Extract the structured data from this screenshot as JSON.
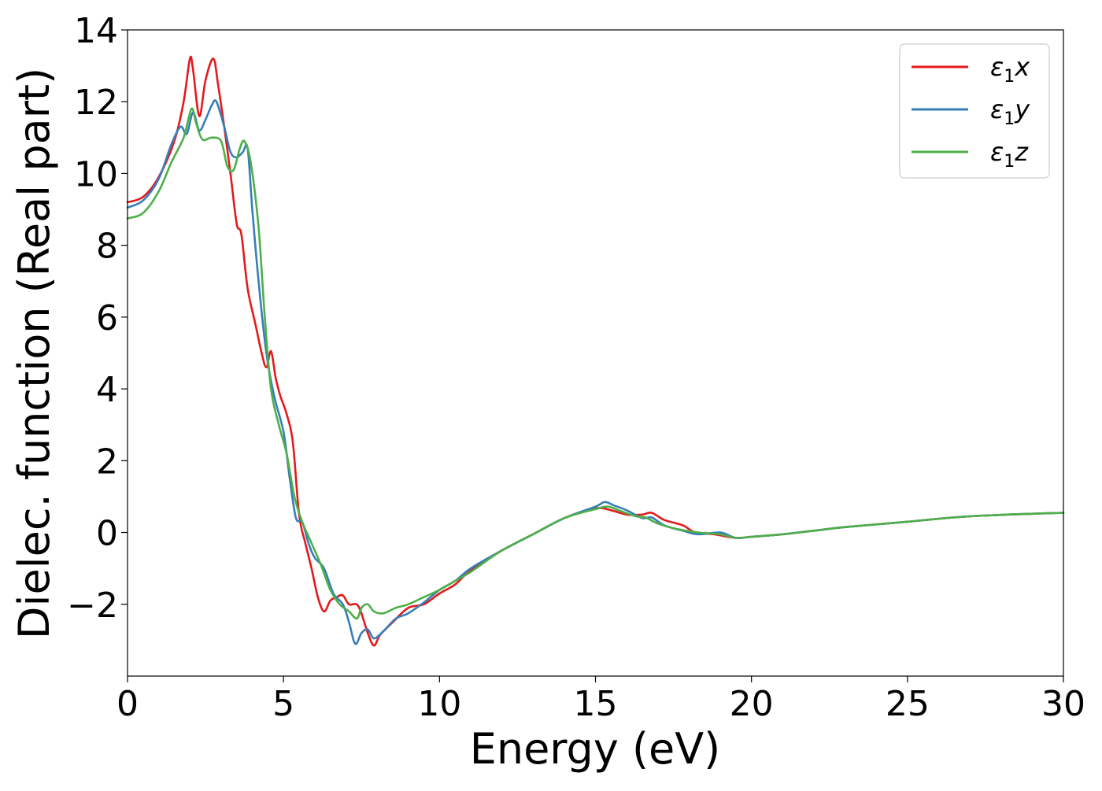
{
  "chart_data": {
    "type": "line",
    "title": "",
    "xlabel": "Energy (eV)",
    "ylabel": "Dielec. function (Real part)",
    "xlim": [
      0,
      30
    ],
    "ylim": [
      -4,
      14
    ],
    "xticks": [
      0,
      5,
      10,
      15,
      20,
      25,
      30
    ],
    "xtick_labels": [
      "0",
      "5",
      "10",
      "15",
      "20",
      "25",
      "30"
    ],
    "yticks": [
      -2,
      0,
      2,
      4,
      6,
      8,
      10,
      12,
      14
    ],
    "ytick_labels": [
      "−2",
      "0",
      "2",
      "4",
      "6",
      "8",
      "10",
      "12",
      "14"
    ],
    "grid": false,
    "legend_position": "top-right",
    "series": [
      {
        "name": "ε₁x",
        "legend_base": "ε",
        "legend_sub": "1",
        "legend_var": "x",
        "color": "#e41a1c",
        "points": [
          [
            0,
            9.2
          ],
          [
            0.5,
            9.35
          ],
          [
            1.0,
            9.9
          ],
          [
            1.5,
            10.9
          ],
          [
            1.8,
            12.0
          ],
          [
            2.0,
            13.2
          ],
          [
            2.1,
            12.9
          ],
          [
            2.3,
            11.6
          ],
          [
            2.5,
            12.6
          ],
          [
            2.75,
            13.2
          ],
          [
            2.9,
            12.5
          ],
          [
            3.1,
            11.3
          ],
          [
            3.3,
            10.0
          ],
          [
            3.5,
            8.6
          ],
          [
            3.65,
            8.3
          ],
          [
            3.85,
            6.8
          ],
          [
            4.1,
            5.8
          ],
          [
            4.3,
            5.0
          ],
          [
            4.45,
            4.6
          ],
          [
            4.6,
            5.05
          ],
          [
            4.75,
            4.3
          ],
          [
            4.9,
            3.8
          ],
          [
            5.1,
            3.3
          ],
          [
            5.3,
            2.5
          ],
          [
            5.5,
            0.5
          ],
          [
            5.7,
            -0.3
          ],
          [
            5.9,
            -1.0
          ],
          [
            6.1,
            -1.8
          ],
          [
            6.3,
            -2.2
          ],
          [
            6.5,
            -1.9
          ],
          [
            6.7,
            -1.8
          ],
          [
            6.9,
            -1.75
          ],
          [
            7.1,
            -2.0
          ],
          [
            7.4,
            -2.05
          ],
          [
            7.7,
            -2.8
          ],
          [
            7.9,
            -3.15
          ],
          [
            8.1,
            -2.85
          ],
          [
            8.5,
            -2.5
          ],
          [
            9.0,
            -2.1
          ],
          [
            9.5,
            -2.0
          ],
          [
            10.0,
            -1.7
          ],
          [
            10.5,
            -1.45
          ],
          [
            11.0,
            -1.05
          ],
          [
            12.0,
            -0.5
          ],
          [
            13.0,
            -0.05
          ],
          [
            14.0,
            0.4
          ],
          [
            15.0,
            0.67
          ],
          [
            15.5,
            0.62
          ],
          [
            16.0,
            0.5
          ],
          [
            16.5,
            0.5
          ],
          [
            16.8,
            0.55
          ],
          [
            17.2,
            0.35
          ],
          [
            17.8,
            0.2
          ],
          [
            18.2,
            0.0
          ],
          [
            18.8,
            -0.05
          ],
          [
            19.5,
            -0.15
          ],
          [
            20.0,
            -0.12
          ],
          [
            21.0,
            -0.05
          ],
          [
            22.0,
            0.05
          ],
          [
            23.0,
            0.15
          ],
          [
            25.0,
            0.3
          ],
          [
            27.0,
            0.45
          ],
          [
            30.0,
            0.55
          ]
        ]
      },
      {
        "name": "ε₁y",
        "legend_base": "ε",
        "legend_sub": "1",
        "legend_var": "y",
        "color": "#377eb8",
        "points": [
          [
            0,
            9.05
          ],
          [
            0.5,
            9.25
          ],
          [
            1.0,
            9.85
          ],
          [
            1.4,
            10.8
          ],
          [
            1.7,
            11.3
          ],
          [
            1.9,
            11.1
          ],
          [
            2.1,
            11.7
          ],
          [
            2.3,
            11.2
          ],
          [
            2.5,
            11.5
          ],
          [
            2.7,
            11.9
          ],
          [
            2.85,
            12.0
          ],
          [
            3.1,
            11.3
          ],
          [
            3.3,
            10.6
          ],
          [
            3.5,
            10.45
          ],
          [
            3.7,
            10.6
          ],
          [
            3.85,
            10.7
          ],
          [
            4.0,
            9.0
          ],
          [
            4.2,
            7.0
          ],
          [
            4.45,
            5.0
          ],
          [
            4.7,
            3.8
          ],
          [
            5.0,
            2.8
          ],
          [
            5.2,
            1.5
          ],
          [
            5.4,
            0.4
          ],
          [
            5.6,
            0.3
          ],
          [
            5.8,
            -0.3
          ],
          [
            6.0,
            -0.7
          ],
          [
            6.3,
            -1.0
          ],
          [
            6.6,
            -1.7
          ],
          [
            6.9,
            -2.0
          ],
          [
            7.1,
            -2.5
          ],
          [
            7.3,
            -3.1
          ],
          [
            7.5,
            -2.8
          ],
          [
            7.7,
            -2.7
          ],
          [
            7.9,
            -2.95
          ],
          [
            8.2,
            -2.75
          ],
          [
            8.6,
            -2.4
          ],
          [
            9.0,
            -2.25
          ],
          [
            9.5,
            -1.95
          ],
          [
            10.0,
            -1.6
          ],
          [
            10.5,
            -1.35
          ],
          [
            11.0,
            -1.0
          ],
          [
            12.0,
            -0.5
          ],
          [
            13.0,
            -0.05
          ],
          [
            14.0,
            0.4
          ],
          [
            15.0,
            0.72
          ],
          [
            15.3,
            0.85
          ],
          [
            15.6,
            0.75
          ],
          [
            16.0,
            0.62
          ],
          [
            16.5,
            0.4
          ],
          [
            16.8,
            0.42
          ],
          [
            17.2,
            0.2
          ],
          [
            17.8,
            0.05
          ],
          [
            18.3,
            -0.05
          ],
          [
            19.0,
            0.0
          ],
          [
            19.5,
            -0.15
          ],
          [
            20.0,
            -0.12
          ],
          [
            21.0,
            -0.05
          ],
          [
            22.0,
            0.05
          ],
          [
            23.0,
            0.15
          ],
          [
            25.0,
            0.3
          ],
          [
            27.0,
            0.45
          ],
          [
            30.0,
            0.55
          ]
        ]
      },
      {
        "name": "ε₁z",
        "legend_base": "ε",
        "legend_sub": "1",
        "legend_var": "z",
        "color": "#4daf4a",
        "points": [
          [
            0,
            8.75
          ],
          [
            0.5,
            8.9
          ],
          [
            1.0,
            9.5
          ],
          [
            1.4,
            10.3
          ],
          [
            1.8,
            11.0
          ],
          [
            2.05,
            11.8
          ],
          [
            2.2,
            11.4
          ],
          [
            2.4,
            10.95
          ],
          [
            2.7,
            11.0
          ],
          [
            3.0,
            10.9
          ],
          [
            3.2,
            10.2
          ],
          [
            3.4,
            10.1
          ],
          [
            3.6,
            10.7
          ],
          [
            3.75,
            10.9
          ],
          [
            3.95,
            10.3
          ],
          [
            4.2,
            8.5
          ],
          [
            4.4,
            6.0
          ],
          [
            4.6,
            4.0
          ],
          [
            4.85,
            3.0
          ],
          [
            5.1,
            2.2
          ],
          [
            5.35,
            1.0
          ],
          [
            5.6,
            0.3
          ],
          [
            5.9,
            -0.3
          ],
          [
            6.2,
            -0.9
          ],
          [
            6.5,
            -1.6
          ],
          [
            6.8,
            -2.0
          ],
          [
            7.1,
            -2.2
          ],
          [
            7.35,
            -2.4
          ],
          [
            7.5,
            -2.1
          ],
          [
            7.7,
            -2.0
          ],
          [
            7.9,
            -2.2
          ],
          [
            8.2,
            -2.25
          ],
          [
            8.6,
            -2.1
          ],
          [
            9.0,
            -2.0
          ],
          [
            9.5,
            -1.8
          ],
          [
            10.0,
            -1.6
          ],
          [
            10.5,
            -1.35
          ],
          [
            11.0,
            -1.1
          ],
          [
            12.0,
            -0.5
          ],
          [
            13.0,
            -0.05
          ],
          [
            14.0,
            0.4
          ],
          [
            15.0,
            0.65
          ],
          [
            15.4,
            0.72
          ],
          [
            15.8,
            0.6
          ],
          [
            16.3,
            0.45
          ],
          [
            16.6,
            0.42
          ],
          [
            17.0,
            0.25
          ],
          [
            17.6,
            0.1
          ],
          [
            18.3,
            0.0
          ],
          [
            19.0,
            -0.05
          ],
          [
            19.5,
            -0.15
          ],
          [
            20.0,
            -0.12
          ],
          [
            21.0,
            -0.05
          ],
          [
            22.0,
            0.05
          ],
          [
            23.0,
            0.15
          ],
          [
            25.0,
            0.3
          ],
          [
            27.0,
            0.45
          ],
          [
            30.0,
            0.55
          ]
        ]
      }
    ]
  }
}
